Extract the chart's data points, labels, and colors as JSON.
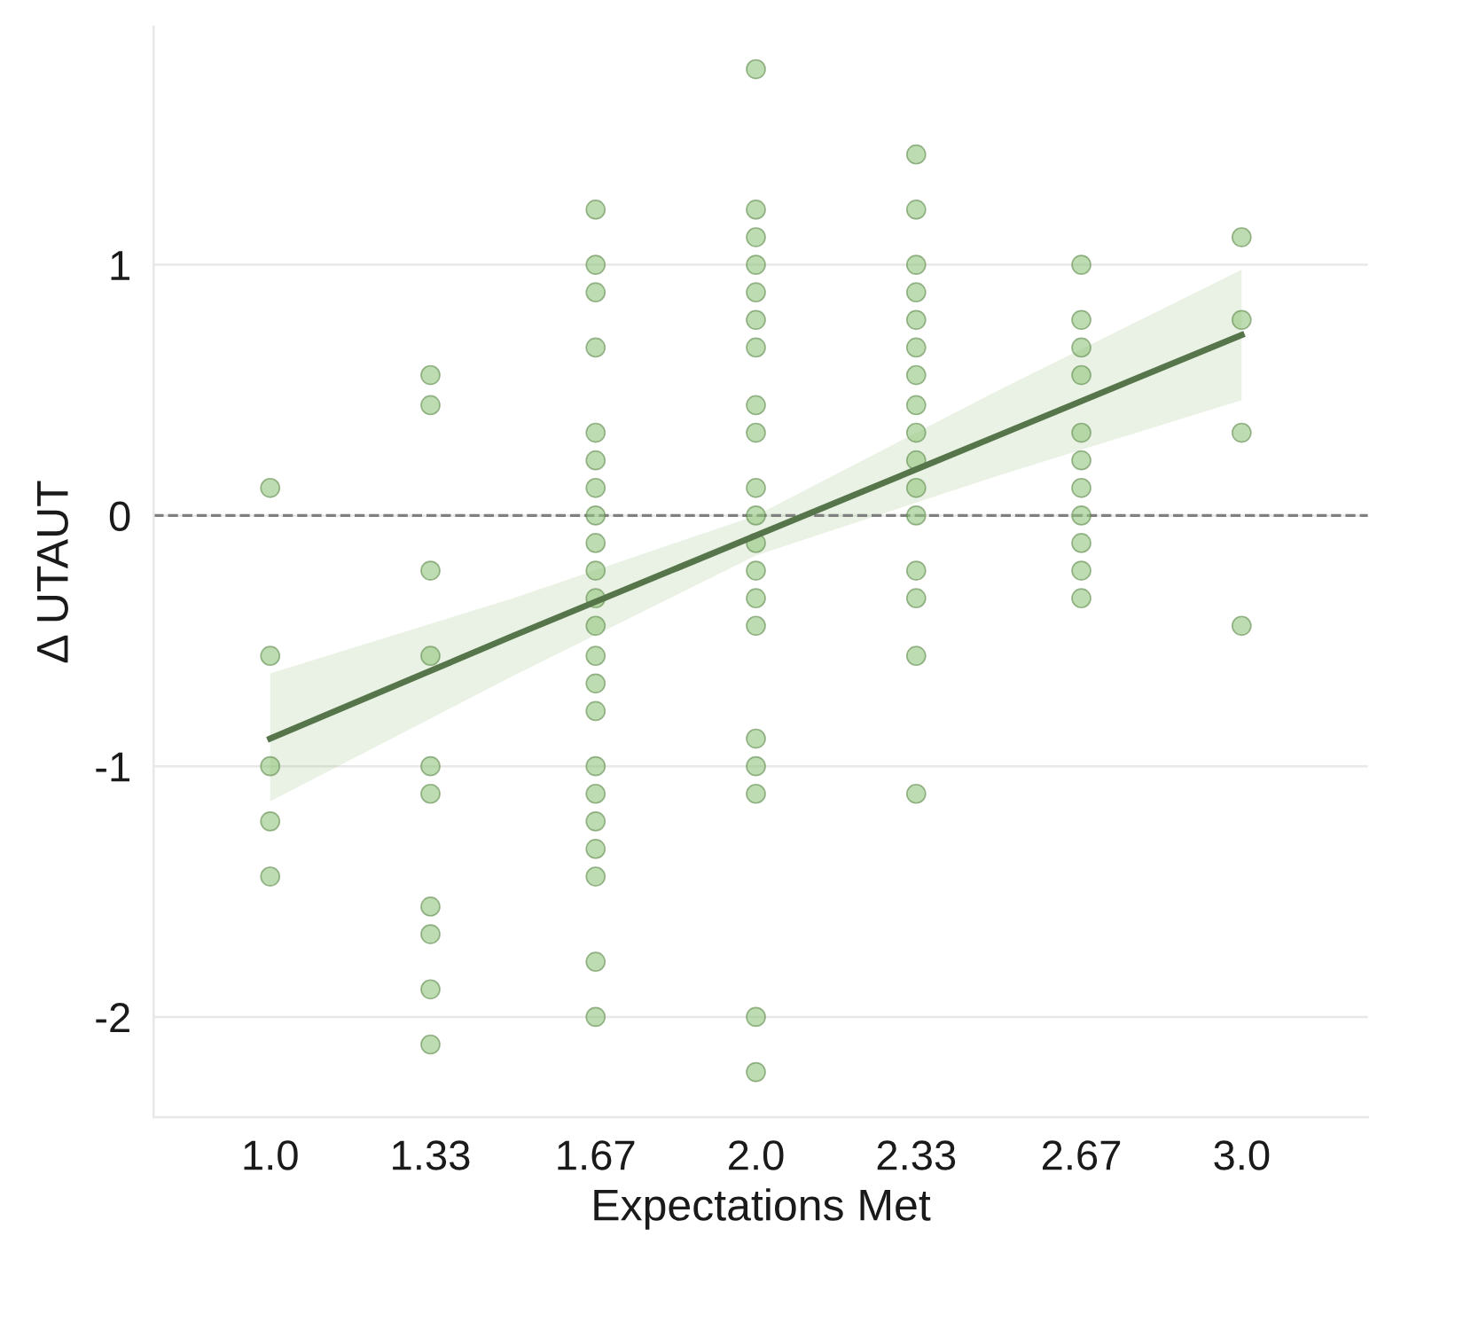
{
  "chart_data": {
    "type": "scatter",
    "xlabel": "Expectations Met",
    "ylabel": "Δ UTAUT",
    "xlim": [
      0.76,
      3.26
    ],
    "ylim": [
      -2.4,
      1.95
    ],
    "xticks": [
      {
        "value": 1,
        "label": "1.0"
      },
      1.33,
      1.67,
      {
        "value": 2,
        "label": "2.0"
      },
      2.33,
      2.67,
      {
        "value": 3,
        "label": "3.0"
      }
    ],
    "yticks": [
      -2,
      -1,
      0,
      1
    ],
    "grid": "y",
    "ref_lines": [
      {
        "axis": "y",
        "value": 0,
        "color": "#808080",
        "line_style": "dashed"
      }
    ],
    "series": [
      {
        "type": "scatter",
        "marker": "circle",
        "color": "#93c47d",
        "x": [
          1.0,
          1.0,
          1.0,
          1.0,
          1.0,
          1.33,
          1.33,
          1.33,
          1.33,
          1.33,
          1.33,
          1.33,
          1.33,
          1.33,
          1.33,
          1.67,
          1.67,
          1.67,
          1.67,
          1.67,
          1.67,
          1.67,
          1.67,
          1.67,
          1.67,
          1.67,
          1.67,
          1.67,
          1.67,
          1.67,
          1.67,
          1.67,
          1.67,
          1.67,
          1.67,
          1.67,
          1.67,
          2.0,
          2.0,
          2.0,
          2.0,
          2.0,
          2.0,
          2.0,
          2.0,
          2.0,
          2.0,
          2.0,
          2.0,
          2.0,
          2.0,
          2.0,
          2.0,
          2.0,
          2.0,
          2.0,
          2.0,
          2.33,
          2.33,
          2.33,
          2.33,
          2.33,
          2.33,
          2.33,
          2.33,
          2.33,
          2.33,
          2.33,
          2.33,
          2.33,
          2.33,
          2.33,
          2.33,
          2.67,
          2.67,
          2.67,
          2.67,
          2.67,
          2.67,
          2.67,
          2.67,
          2.67,
          2.67,
          2.67,
          3.0,
          3.0,
          3.0,
          3.0
        ],
        "values": [
          0.11,
          -0.56,
          -1,
          -1.22,
          -1.44,
          0.56,
          0.44,
          -0.22,
          -0.56,
          -1,
          -1.11,
          -1.56,
          -1.67,
          -1.89,
          -2.11,
          1.22,
          1,
          0.89,
          0.67,
          0.33,
          0.22,
          0.11,
          0,
          -0.11,
          -0.22,
          -0.33,
          -0.44,
          -0.56,
          -0.67,
          -0.78,
          -1,
          -1.11,
          -1.22,
          -1.33,
          -1.44,
          -1.78,
          -2,
          1.78,
          1.22,
          1.11,
          1,
          0.89,
          0.78,
          0.67,
          0.44,
          0.33,
          0.11,
          0,
          -0.11,
          -0.22,
          -0.33,
          -0.44,
          -0.89,
          -1,
          -1.11,
          -2,
          -2.22,
          1.44,
          1.22,
          1,
          0.89,
          0.78,
          0.67,
          0.56,
          0.44,
          0.33,
          0.22,
          0.11,
          0,
          -0.22,
          -0.33,
          -0.56,
          -1.11,
          1,
          0.78,
          0.67,
          0.56,
          0.33,
          0.22,
          0.11,
          0,
          -0.11,
          -0.22,
          -0.33,
          1.11,
          0.78,
          0.33,
          -0.44
        ]
      },
      {
        "type": "line",
        "color": "#56754a",
        "x": [
          1.0,
          1.5,
          2.0,
          2.5,
          3.0
        ],
        "values": [
          -0.89,
          -0.48,
          -0.08,
          0.32,
          0.72
        ],
        "lower": [
          -1.14,
          -0.64,
          -0.16,
          0.16,
          0.46
        ],
        "upper": [
          -0.63,
          -0.33,
          0.0,
          0.5,
          0.98
        ]
      }
    ]
  }
}
